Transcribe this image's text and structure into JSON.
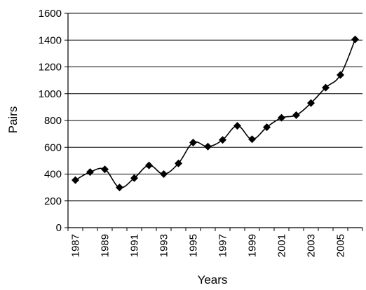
{
  "chart_data": {
    "type": "line",
    "title": "",
    "xlabel": "Years",
    "ylabel": "Pairs",
    "ylim": [
      0,
      1600
    ],
    "yticks": [
      0,
      200,
      400,
      600,
      800,
      1000,
      1200,
      1400,
      1600
    ],
    "x": [
      1987,
      1988,
      1989,
      1990,
      1991,
      1992,
      1993,
      1994,
      1995,
      1996,
      1997,
      1998,
      1999,
      2000,
      2001,
      2002,
      2003,
      2004,
      2005,
      2006
    ],
    "xtick_labels": [
      "1987",
      "1989",
      "1991",
      "1993",
      "1995",
      "1997",
      "1999",
      "2001",
      "2003",
      "2005"
    ],
    "grid": "horizontal",
    "legend": "none",
    "marker": "diamond",
    "line_color": "#000000",
    "series": [
      {
        "values": [
          355,
          415,
          435,
          300,
          370,
          465,
          400,
          480,
          635,
          605,
          655,
          760,
          660,
          750,
          820,
          840,
          930,
          1045,
          1140,
          1405
        ]
      }
    ]
  }
}
